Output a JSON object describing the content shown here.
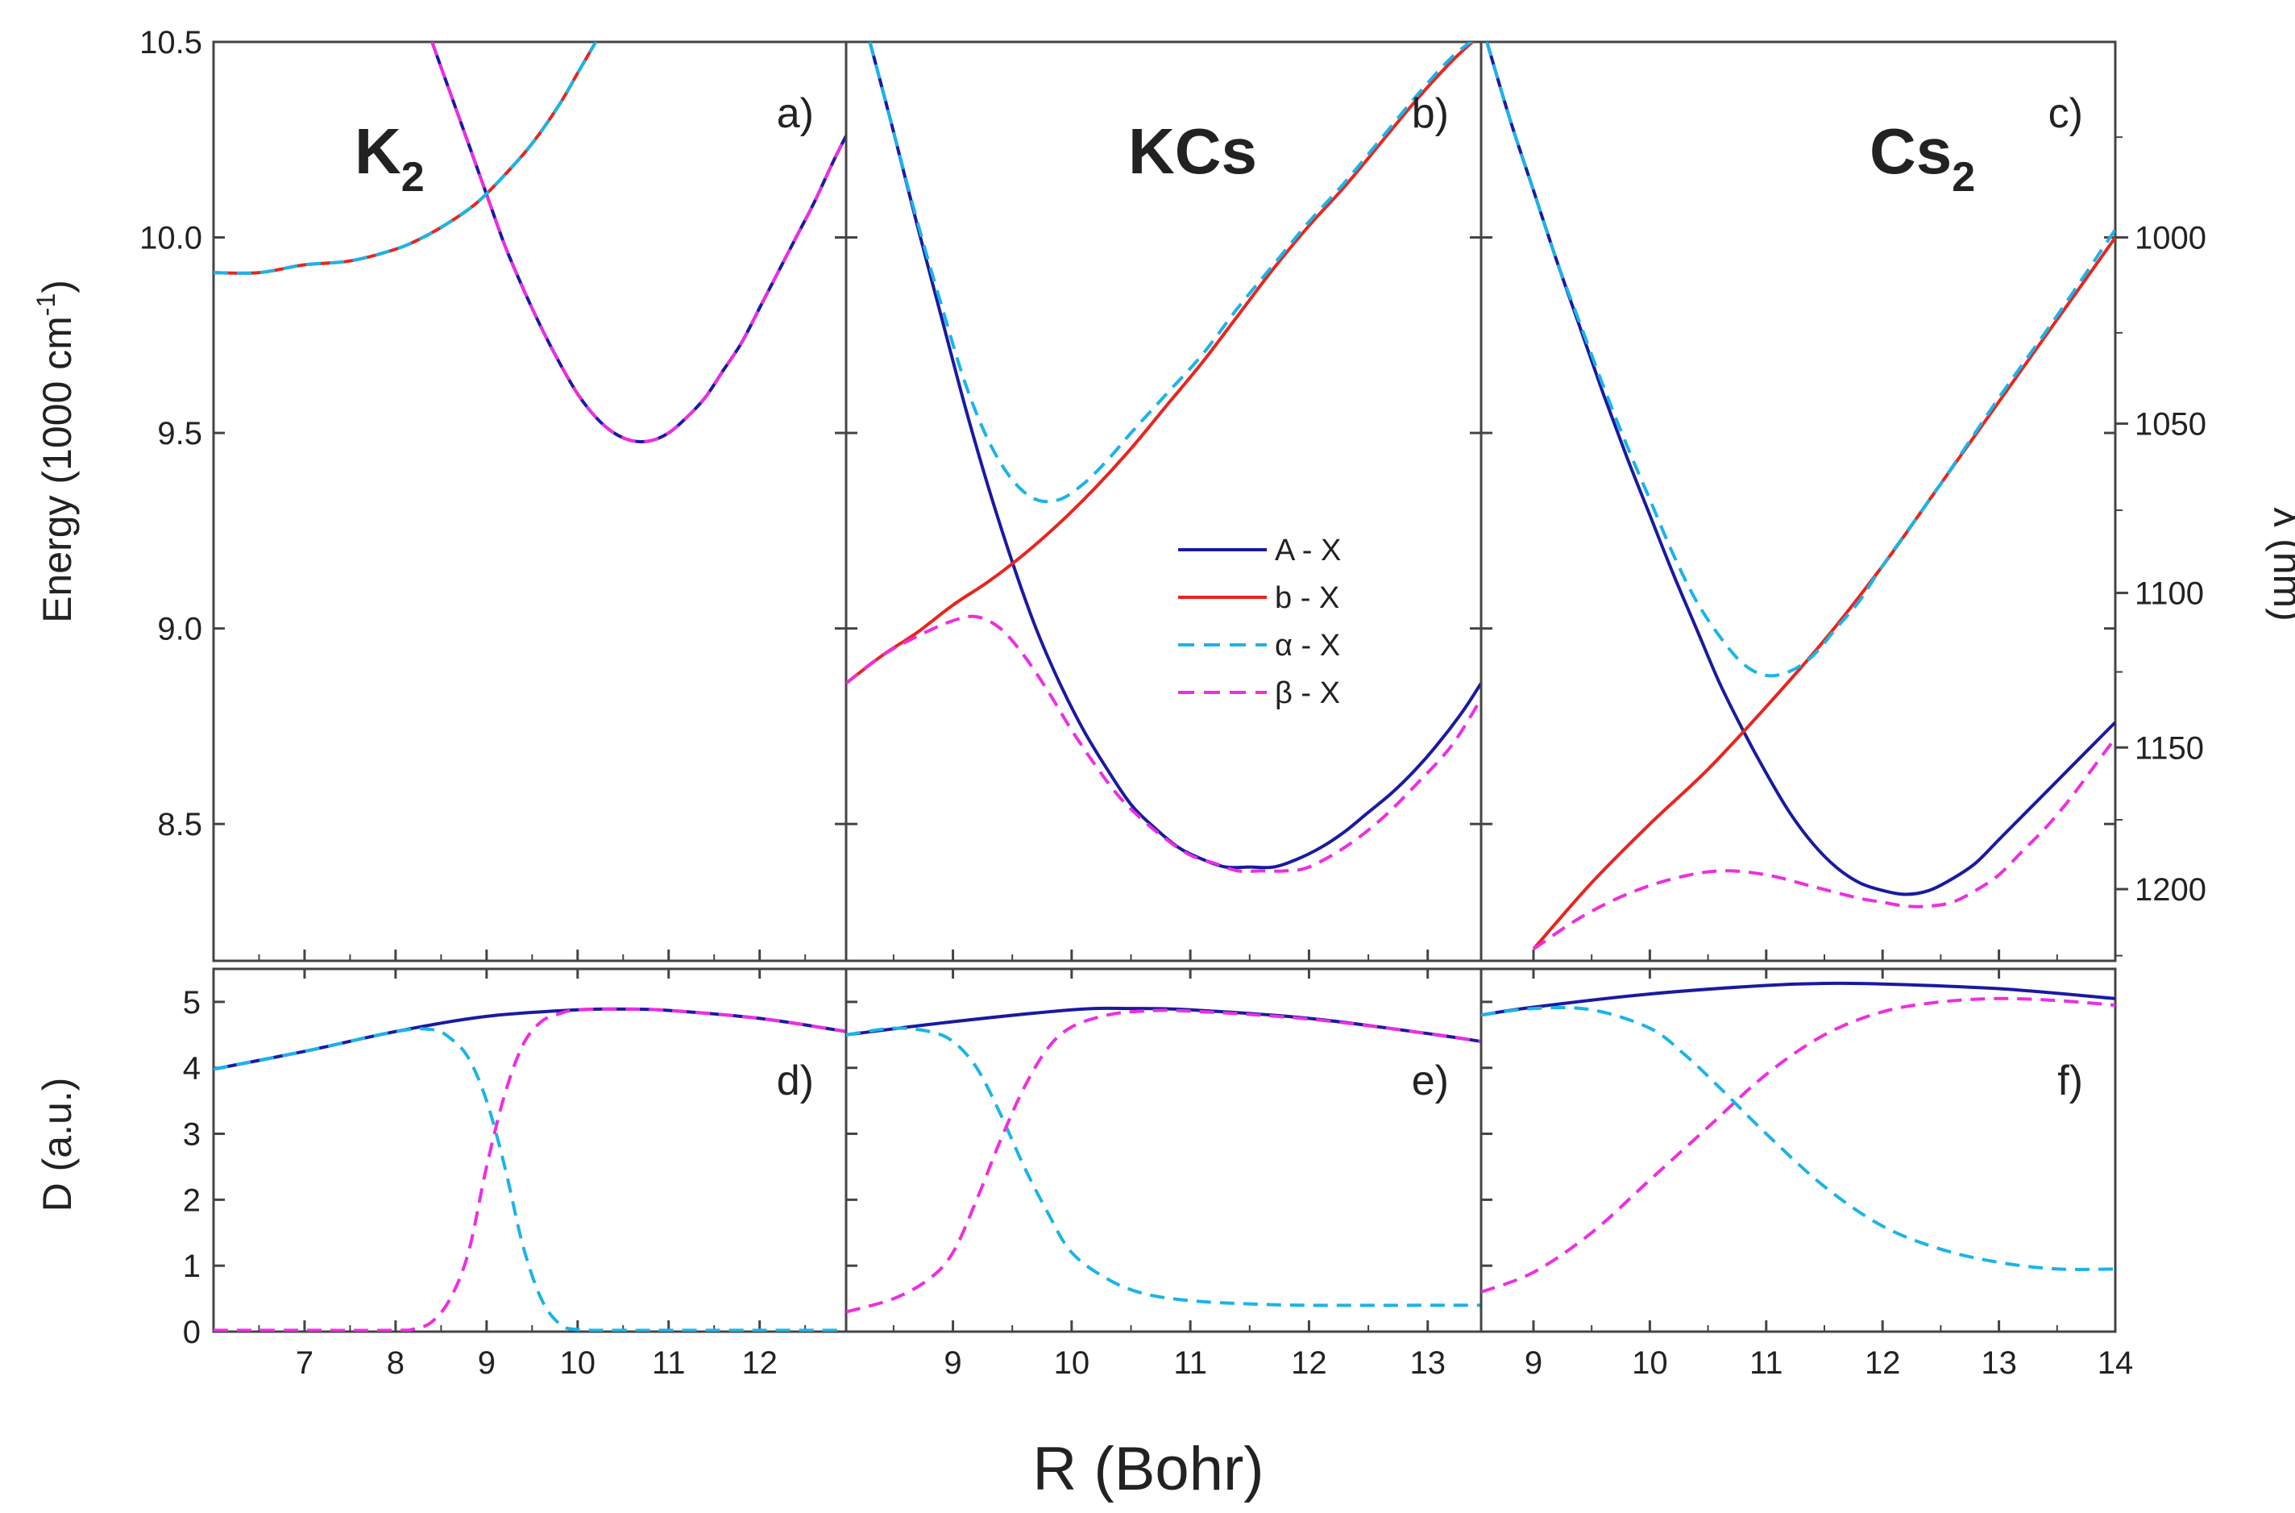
{
  "chart_data": {
    "type": "line",
    "xlabel": "R (Bohr)",
    "top_ylabel": "Energy (1000 cm",
    "top_ylabel_sup": "-1",
    "top_ylabel_close": ")",
    "right_ylabel": "λ (nm)",
    "bottom_ylabel": "D (a.u.)",
    "top_ylim": [
      8.15,
      10.5
    ],
    "top_yticks": [
      "8.5",
      "9.0",
      "9.5",
      "10.0",
      "10.5"
    ],
    "bottom_ylim": [
      0,
      5.5
    ],
    "bottom_yticks": [
      "0",
      "1",
      "2",
      "3",
      "4",
      "5"
    ],
    "right_yticks": [
      "1000",
      "1050",
      "1100",
      "1150",
      "1200"
    ],
    "legend": [
      {
        "label": "A - X",
        "color": "#1a1aa0",
        "dash": "solid"
      },
      {
        "label": "b - X",
        "color": "#e8251e",
        "dash": "solid"
      },
      {
        "label": "α - X",
        "color": "#1ab4e8",
        "dash": "dashed"
      },
      {
        "label": "β - X",
        "color": "#ee2ee0",
        "dash": "dashed"
      }
    ],
    "panels": [
      {
        "molecule": "K",
        "subscript": "2",
        "xlim": [
          6,
          12.95
        ],
        "xticks": [
          "7",
          "8",
          "9",
          "10",
          "11",
          "12"
        ],
        "energy_label": "a)",
        "dipole_label": "d)",
        "energy_series": [
          {
            "name": "A - X",
            "x": [
              8.4,
              8.6,
              8.8,
              9.0,
              9.2,
              9.4,
              9.6,
              9.8,
              10.0,
              10.2,
              10.4,
              10.6,
              10.8,
              11.0,
              11.2,
              11.4,
              11.6,
              11.8,
              12.0,
              12.2,
              12.4,
              12.6,
              12.8,
              12.95
            ],
            "y": [
              10.5,
              10.37,
              10.24,
              10.11,
              9.98,
              9.87,
              9.77,
              9.68,
              9.6,
              9.54,
              9.5,
              9.48,
              9.48,
              9.5,
              9.54,
              9.59,
              9.66,
              9.73,
              9.82,
              9.91,
              10.0,
              10.09,
              10.19,
              10.26
            ]
          },
          {
            "name": "b - X",
            "x": [
              6.0,
              6.5,
              7.0,
              7.5,
              8.0,
              8.3,
              8.6,
              8.9,
              9.2,
              9.5,
              9.8,
              10.0,
              10.2
            ],
            "y": [
              9.91,
              9.91,
              9.93,
              9.94,
              9.97,
              10.0,
              10.04,
              10.09,
              10.16,
              10.24,
              10.34,
              10.42,
              10.5
            ]
          },
          {
            "name": "α - X",
            "x": [
              6.0,
              6.5,
              7.0,
              7.5,
              8.0,
              8.3,
              8.6,
              8.9,
              9.2,
              9.5,
              9.8,
              10.0,
              10.2
            ],
            "y": [
              9.91,
              9.91,
              9.93,
              9.94,
              9.97,
              10.0,
              10.04,
              10.09,
              10.16,
              10.24,
              10.34,
              10.42,
              10.5
            ]
          },
          {
            "name": "β - X",
            "x": [
              8.4,
              8.6,
              8.8,
              9.0,
              9.2,
              9.4,
              9.6,
              9.8,
              10.0,
              10.2,
              10.4,
              10.6,
              10.8,
              11.0,
              11.2,
              11.4,
              11.6,
              11.8,
              12.0,
              12.2,
              12.4,
              12.6,
              12.8,
              12.95
            ],
            "y": [
              10.5,
              10.37,
              10.24,
              10.11,
              9.98,
              9.87,
              9.77,
              9.68,
              9.6,
              9.54,
              9.5,
              9.48,
              9.48,
              9.5,
              9.54,
              9.59,
              9.66,
              9.73,
              9.82,
              9.91,
              10.0,
              10.09,
              10.19,
              10.26
            ]
          }
        ],
        "dipole_series": [
          {
            "name": "A - X",
            "x": [
              6.0,
              7.0,
              8.0,
              9.0,
              10.0,
              10.5,
              11.0,
              12.0,
              12.95
            ],
            "y": [
              3.98,
              4.25,
              4.55,
              4.78,
              4.88,
              4.89,
              4.87,
              4.75,
              4.55
            ]
          },
          {
            "name": "b - X",
            "x": [],
            "y": []
          },
          {
            "name": "α - X",
            "x": [
              6.0,
              7.0,
              8.0,
              8.4,
              8.6,
              8.8,
              9.0,
              9.2,
              9.4,
              9.6,
              9.8,
              10.0,
              10.5,
              11.0,
              12.0,
              12.95
            ],
            "y": [
              3.98,
              4.25,
              4.55,
              4.58,
              4.45,
              4.15,
              3.5,
              2.5,
              1.3,
              0.5,
              0.12,
              0.03,
              0.02,
              0.02,
              0.02,
              0.02
            ]
          },
          {
            "name": "β - X",
            "x": [
              6.0,
              7.0,
              8.0,
              8.2,
              8.4,
              8.6,
              8.8,
              9.0,
              9.2,
              9.4,
              9.6,
              9.8,
              10.0,
              10.5,
              11.0,
              12.0,
              12.95
            ],
            "y": [
              0.02,
              0.02,
              0.02,
              0.04,
              0.15,
              0.5,
              1.2,
              2.5,
              3.6,
              4.35,
              4.7,
              4.82,
              4.88,
              4.89,
              4.87,
              4.75,
              4.55
            ]
          }
        ]
      },
      {
        "molecule": "KCs",
        "subscript": "",
        "xlim": [
          8.1,
          13.45
        ],
        "xticks": [
          "9",
          "10",
          "11",
          "12",
          "13"
        ],
        "energy_label": "b)",
        "dipole_label": "e)",
        "energy_series": [
          {
            "name": "A - X",
            "x": [
              8.3,
              8.5,
              8.7,
              8.9,
              9.1,
              9.3,
              9.5,
              9.7,
              9.9,
              10.1,
              10.3,
              10.5,
              10.7,
              10.9,
              11.1,
              11.3,
              11.5,
              11.7,
              11.9,
              12.1,
              12.3,
              12.5,
              12.7,
              12.9,
              13.1,
              13.3,
              13.45
            ],
            "y": [
              10.5,
              10.27,
              10.03,
              9.8,
              9.57,
              9.36,
              9.17,
              9.0,
              8.86,
              8.74,
              8.64,
              8.55,
              8.49,
              8.44,
              8.41,
              8.39,
              8.39,
              8.39,
              8.41,
              8.44,
              8.48,
              8.53,
              8.58,
              8.64,
              8.71,
              8.79,
              8.86
            ]
          },
          {
            "name": "b - X",
            "x": [
              8.1,
              8.4,
              8.7,
              9.0,
              9.3,
              9.6,
              9.9,
              10.2,
              10.5,
              10.8,
              11.1,
              11.4,
              11.7,
              12.0,
              12.3,
              12.6,
              12.9,
              13.2,
              13.45
            ],
            "y": [
              8.86,
              8.93,
              8.99,
              9.06,
              9.12,
              9.19,
              9.27,
              9.36,
              9.46,
              9.57,
              9.68,
              9.8,
              9.92,
              10.03,
              10.13,
              10.24,
              10.35,
              10.45,
              10.52
            ]
          },
          {
            "name": "α - X",
            "x": [
              8.3,
              8.5,
              8.7,
              8.9,
              9.1,
              9.3,
              9.5,
              9.7,
              9.9,
              10.1,
              10.3,
              10.5,
              10.8,
              11.1,
              11.4,
              11.7,
              12.0,
              12.3,
              12.6,
              12.9,
              13.2,
              13.45
            ],
            "y": [
              10.5,
              10.27,
              10.04,
              9.83,
              9.63,
              9.48,
              9.38,
              9.33,
              9.33,
              9.37,
              9.43,
              9.5,
              9.6,
              9.7,
              9.82,
              9.93,
              10.04,
              10.14,
              10.25,
              10.36,
              10.46,
              10.52
            ]
          },
          {
            "name": "β - X",
            "x": [
              8.1,
              8.4,
              8.7,
              9.0,
              9.2,
              9.4,
              9.6,
              9.8,
              10.0,
              10.2,
              10.4,
              10.6,
              10.8,
              11.0,
              11.2,
              11.4,
              11.6,
              11.8,
              12.0,
              12.3,
              12.6,
              12.9,
              13.2,
              13.45
            ],
            "y": [
              8.86,
              8.93,
              8.98,
              9.02,
              9.03,
              9.0,
              8.93,
              8.84,
              8.74,
              8.65,
              8.57,
              8.51,
              8.46,
              8.42,
              8.4,
              8.38,
              8.38,
              8.38,
              8.39,
              8.44,
              8.51,
              8.6,
              8.7,
              8.82
            ]
          }
        ],
        "dipole_series": [
          {
            "name": "A - X",
            "x": [
              8.1,
              9.0,
              10.0,
              10.5,
              11.0,
              12.0,
              13.0,
              13.45
            ],
            "y": [
              4.5,
              4.7,
              4.88,
              4.9,
              4.88,
              4.75,
              4.52,
              4.4
            ]
          },
          {
            "name": "b - X",
            "x": [],
            "y": []
          },
          {
            "name": "α - X",
            "x": [
              8.1,
              8.5,
              8.8,
              9.0,
              9.2,
              9.4,
              9.6,
              9.8,
              10.0,
              10.3,
              10.6,
              11.0,
              11.5,
              12.0,
              13.0,
              13.45
            ],
            "y": [
              4.5,
              4.6,
              4.55,
              4.4,
              4.0,
              3.3,
              2.5,
              1.8,
              1.2,
              0.8,
              0.58,
              0.47,
              0.42,
              0.4,
              0.4,
              0.4
            ]
          },
          {
            "name": "β - X",
            "x": [
              8.1,
              8.5,
              8.8,
              9.0,
              9.2,
              9.4,
              9.6,
              9.8,
              10.0,
              10.3,
              10.6,
              11.0,
              12.0,
              13.0,
              13.45
            ],
            "y": [
              0.3,
              0.5,
              0.8,
              1.2,
              2.0,
              2.9,
              3.7,
              4.3,
              4.62,
              4.8,
              4.86,
              4.86,
              4.74,
              4.52,
              4.4
            ]
          }
        ]
      },
      {
        "molecule": "Cs",
        "subscript": "2",
        "xlim": [
          8.55,
          14
        ],
        "xticks": [
          "9",
          "10",
          "11",
          "12",
          "13",
          "14"
        ],
        "energy_label": "c)",
        "dipole_label": "f)",
        "energy_series": [
          {
            "name": "A - X",
            "x": [
              8.6,
              8.8,
              9.0,
              9.2,
              9.4,
              9.6,
              9.8,
              10.0,
              10.2,
              10.4,
              10.6,
              10.8,
              11.0,
              11.2,
              11.4,
              11.6,
              11.8,
              12.0,
              12.2,
              12.4,
              12.6,
              12.8,
              13.0,
              13.2,
              13.4,
              13.6,
              13.8,
              14.0
            ],
            "y": [
              10.5,
              10.3,
              10.12,
              9.94,
              9.77,
              9.6,
              9.44,
              9.29,
              9.14,
              9.0,
              8.86,
              8.74,
              8.63,
              8.53,
              8.45,
              8.39,
              8.35,
              8.33,
              8.32,
              8.33,
              8.36,
              8.4,
              8.46,
              8.52,
              8.58,
              8.64,
              8.7,
              8.76
            ]
          },
          {
            "name": "b - X",
            "x": [
              9.0,
              9.5,
              10.0,
              10.5,
              11.0,
              11.5,
              12.0,
              12.5,
              13.0,
              13.5,
              14.0
            ],
            "y": [
              8.18,
              8.35,
              8.5,
              8.64,
              8.8,
              8.97,
              9.16,
              9.37,
              9.58,
              9.79,
              10.0
            ]
          },
          {
            "name": "α - X",
            "x": [
              8.6,
              8.8,
              9.0,
              9.2,
              9.4,
              9.6,
              9.8,
              10.0,
              10.2,
              10.4,
              10.6,
              10.8,
              11.0,
              11.2,
              11.4,
              11.6,
              11.8,
              12.0,
              12.5,
              13.0,
              13.5,
              14.0
            ],
            "y": [
              10.5,
              10.3,
              10.12,
              9.94,
              9.78,
              9.62,
              9.47,
              9.33,
              9.19,
              9.07,
              8.98,
              8.91,
              8.88,
              8.89,
              8.93,
              9.0,
              9.07,
              9.16,
              9.37,
              9.59,
              9.8,
              10.02
            ]
          },
          {
            "name": "β - X",
            "x": [
              9.0,
              9.4,
              9.8,
              10.2,
              10.6,
              11.0,
              11.4,
              11.8,
              12.0,
              12.2,
              12.4,
              12.6,
              12.8,
              13.0,
              13.2,
              13.4,
              13.6,
              13.8,
              14.0
            ],
            "y": [
              8.18,
              8.26,
              8.32,
              8.36,
              8.38,
              8.37,
              8.34,
              8.31,
              8.3,
              8.29,
              8.29,
              8.3,
              8.33,
              8.37,
              8.43,
              8.49,
              8.56,
              8.64,
              8.72
            ]
          }
        ],
        "dipole_series": [
          {
            "name": "A - X",
            "x": [
              8.55,
              9.0,
              10.0,
              11.0,
              11.5,
              12.0,
              13.0,
              14.0
            ],
            "y": [
              4.8,
              4.92,
              5.12,
              5.25,
              5.28,
              5.27,
              5.2,
              5.05
            ]
          },
          {
            "name": "b - X",
            "x": [],
            "y": []
          },
          {
            "name": "α - X",
            "x": [
              8.55,
              9.0,
              9.5,
              10.0,
              10.3,
              10.6,
              11.0,
              11.5,
              12.0,
              12.5,
              13.0,
              13.5,
              14.0
            ],
            "y": [
              4.8,
              4.9,
              4.88,
              4.6,
              4.2,
              3.7,
              3.0,
              2.2,
              1.6,
              1.25,
              1.05,
              0.95,
              0.95
            ]
          },
          {
            "name": "β - X",
            "x": [
              8.55,
              9.0,
              9.5,
              10.0,
              10.5,
              11.0,
              11.5,
              12.0,
              12.5,
              13.0,
              13.5,
              14.0
            ],
            "y": [
              0.6,
              0.9,
              1.5,
              2.3,
              3.1,
              3.9,
              4.5,
              4.85,
              5.0,
              5.05,
              5.02,
              4.95
            ]
          }
        ]
      }
    ]
  }
}
